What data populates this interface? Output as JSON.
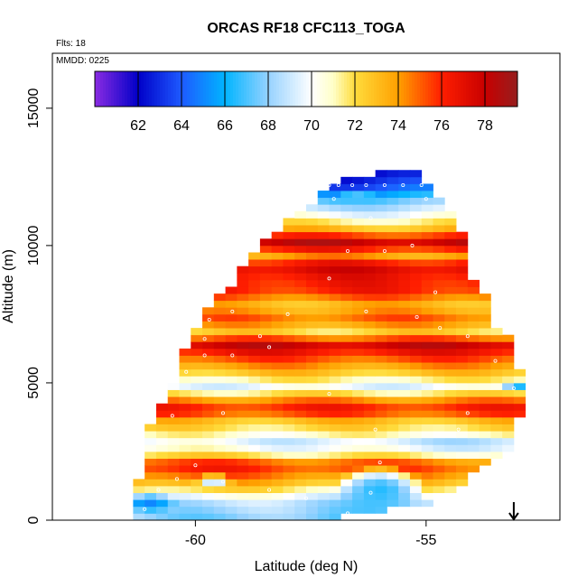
{
  "chart_data": {
    "type": "heatmap",
    "title": "ORCAS RF18 CFC113_TOGA",
    "flights_label": "Flts: 18",
    "date_label": "MMDD: 0225",
    "xlabel": "Latitude (deg N)",
    "ylabel": "Altitude (m)",
    "xlim": [
      -63.1,
      -52.1
    ],
    "ylim": [
      0,
      17000
    ],
    "x_ticks": [
      -60,
      -55
    ],
    "x_tick_labels": [
      "-60",
      "-55"
    ],
    "y_ticks": [
      0,
      5000,
      10000,
      15000
    ],
    "y_tick_labels": [
      "0",
      "5000",
      "10000",
      "15000"
    ],
    "colorbar": {
      "range": [
        60,
        79.5
      ],
      "ticks": [
        62,
        64,
        66,
        68,
        70,
        72,
        74,
        76,
        78
      ],
      "tick_labels": [
        "62",
        "64",
        "66",
        "68",
        "70",
        "72",
        "74",
        "76",
        "78"
      ],
      "stops": [
        {
          "v": 60,
          "color": "#8a2be2"
        },
        {
          "v": 62,
          "color": "#0000c8"
        },
        {
          "v": 64,
          "color": "#1e5aff"
        },
        {
          "v": 66,
          "color": "#00b4ff"
        },
        {
          "v": 68,
          "color": "#96d2ff"
        },
        {
          "v": 70,
          "color": "#ffffff"
        },
        {
          "v": 71,
          "color": "#ffffc8"
        },
        {
          "v": 72,
          "color": "#ffdc3c"
        },
        {
          "v": 74,
          "color": "#ffa000"
        },
        {
          "v": 76,
          "color": "#ff1e00"
        },
        {
          "v": 78,
          "color": "#c80000"
        },
        {
          "v": 79.5,
          "color": "#961e1e"
        }
      ]
    },
    "marker": {
      "type": "arrow-down",
      "lat": -53.1
    },
    "grid": {
      "lat_step": 0.25,
      "alt_step": 250,
      "lat_min": -63.1,
      "alt_min": 0
    },
    "domain_envelope": [
      {
        "alt": 0,
        "lat_min": -61.3,
        "lat_max": -56.8
      },
      {
        "alt": 500,
        "lat_min": -61.3,
        "lat_max": -54.8
      },
      {
        "alt": 1500,
        "lat_min": -61.2,
        "lat_max": -54.0
      },
      {
        "alt": 2500,
        "lat_min": -61.2,
        "lat_max": -53.0
      },
      {
        "alt": 3500,
        "lat_min": -60.9,
        "lat_max": -53.0
      },
      {
        "alt": 4700,
        "lat_min": -60.5,
        "lat_max": -52.8
      },
      {
        "alt": 5500,
        "lat_min": -60.4,
        "lat_max": -53.0
      },
      {
        "alt": 6200,
        "lat_min": -60.2,
        "lat_max": -53.0
      },
      {
        "alt": 6900,
        "lat_min": -60.0,
        "lat_max": -53.5
      },
      {
        "alt": 7700,
        "lat_min": -59.7,
        "lat_max": -53.5
      },
      {
        "alt": 8700,
        "lat_min": -59.1,
        "lat_max": -54.0
      },
      {
        "alt": 9700,
        "lat_min": -58.7,
        "lat_max": -54.1
      },
      {
        "alt": 10700,
        "lat_min": -58.1,
        "lat_max": -54.3
      },
      {
        "alt": 11500,
        "lat_min": -57.4,
        "lat_max": -54.6
      },
      {
        "alt": 12200,
        "lat_min": -57.1,
        "lat_max": -55.1
      },
      {
        "alt": 12500,
        "lat_min": -56.2,
        "lat_max": -55.2
      }
    ],
    "altitude_profile": [
      {
        "alt": 0,
        "value": 67.5
      },
      {
        "alt": 600,
        "value": 68.5
      },
      {
        "alt": 1000,
        "value": 71.5
      },
      {
        "alt": 1400,
        "value": 74
      },
      {
        "alt": 1900,
        "value": 76
      },
      {
        "alt": 2300,
        "value": 71
      },
      {
        "alt": 2700,
        "value": 69
      },
      {
        "alt": 3100,
        "value": 71.5
      },
      {
        "alt": 3500,
        "value": 73
      },
      {
        "alt": 3900,
        "value": 76.5
      },
      {
        "alt": 4300,
        "value": 74
      },
      {
        "alt": 4700,
        "value": 69.5
      },
      {
        "alt": 5100,
        "value": 72
      },
      {
        "alt": 5500,
        "value": 74
      },
      {
        "alt": 5900,
        "value": 76
      },
      {
        "alt": 6300,
        "value": 78
      },
      {
        "alt": 6700,
        "value": 72
      },
      {
        "alt": 7200,
        "value": 75
      },
      {
        "alt": 7700,
        "value": 73
      },
      {
        "alt": 8200,
        "value": 76
      },
      {
        "alt": 8700,
        "value": 76.5
      },
      {
        "alt": 9100,
        "value": 77.5
      },
      {
        "alt": 9500,
        "value": 74
      },
      {
        "alt": 10000,
        "value": 78
      },
      {
        "alt": 10500,
        "value": 73
      },
      {
        "alt": 11000,
        "value": 70
      },
      {
        "alt": 11500,
        "value": 67.5
      },
      {
        "alt": 12000,
        "value": 64
      },
      {
        "alt": 12500,
        "value": 62
      }
    ],
    "anomalies": [
      {
        "lat": -56.0,
        "alt": 1000,
        "lat_halfwidth": 1.0,
        "alt_halfwidth": 900,
        "value": 66.5
      },
      {
        "lat": -61.0,
        "alt": 500,
        "lat_halfwidth": 0.6,
        "alt_halfwidth": 350,
        "value": 65
      },
      {
        "lat": -59.6,
        "alt": 1350,
        "lat_halfwidth": 0.5,
        "alt_halfwidth": 180,
        "value": 66.5
      },
      {
        "lat": -52.9,
        "alt": 4700,
        "lat_halfwidth": 0.5,
        "alt_halfwidth": 180,
        "value": 66
      },
      {
        "lat": -56.5,
        "alt": 11700,
        "lat_halfwidth": 0.5,
        "alt_halfwidth": 300,
        "value": 67
      }
    ],
    "sample_points": [
      {
        "lat": -61.1,
        "alt": 400
      },
      {
        "lat": -60.8,
        "alt": 1100
      },
      {
        "lat": -60.4,
        "alt": 1500
      },
      {
        "lat": -60.0,
        "alt": 2000
      },
      {
        "lat": -59.4,
        "alt": 1400
      },
      {
        "lat": -58.4,
        "alt": 1100
      },
      {
        "lat": -57.6,
        "alt": 800
      },
      {
        "lat": -56.2,
        "alt": 1000
      },
      {
        "lat": -56.0,
        "alt": 2100
      },
      {
        "lat": -60.5,
        "alt": 3800
      },
      {
        "lat": -60.2,
        "alt": 5400
      },
      {
        "lat": -59.8,
        "alt": 6000
      },
      {
        "lat": -59.2,
        "alt": 6000
      },
      {
        "lat": -58.4,
        "alt": 6300
      },
      {
        "lat": -57.1,
        "alt": 4600
      },
      {
        "lat": -56.1,
        "alt": 3300
      },
      {
        "lat": -54.3,
        "alt": 3300
      },
      {
        "lat": -53.5,
        "alt": 5800
      },
      {
        "lat": -53.1,
        "alt": 4800
      },
      {
        "lat": -59.8,
        "alt": 6600
      },
      {
        "lat": -59.7,
        "alt": 7300
      },
      {
        "lat": -59.2,
        "alt": 7600
      },
      {
        "lat": -57.1,
        "alt": 8800
      },
      {
        "lat": -56.7,
        "alt": 9800
      },
      {
        "lat": -56.2,
        "alt": 11000
      },
      {
        "lat": -57.0,
        "alt": 11700
      },
      {
        "lat": -56.9,
        "alt": 12200
      },
      {
        "lat": -56.6,
        "alt": 12200
      },
      {
        "lat": -56.3,
        "alt": 12200
      },
      {
        "lat": -55.9,
        "alt": 12200
      },
      {
        "lat": -55.5,
        "alt": 12200
      },
      {
        "lat": -55.1,
        "alt": 12200
      },
      {
        "lat": -55.0,
        "alt": 11700
      },
      {
        "lat": -55.3,
        "alt": 10000
      },
      {
        "lat": -55.9,
        "alt": 9800
      },
      {
        "lat": -54.8,
        "alt": 8300
      },
      {
        "lat": -55.2,
        "alt": 7400
      },
      {
        "lat": -54.7,
        "alt": 7000
      },
      {
        "lat": -54.1,
        "alt": 6700
      },
      {
        "lat": -56.3,
        "alt": 7600
      },
      {
        "lat": -58.0,
        "alt": 7500
      },
      {
        "lat": -58.6,
        "alt": 6700
      },
      {
        "lat": -57.1,
        "alt": 12200
      },
      {
        "lat": -56.4,
        "alt": 150
      },
      {
        "lat": -56.7,
        "alt": 250
      },
      {
        "lat": -59.4,
        "alt": 3900
      },
      {
        "lat": -54.1,
        "alt": 3900
      }
    ]
  }
}
